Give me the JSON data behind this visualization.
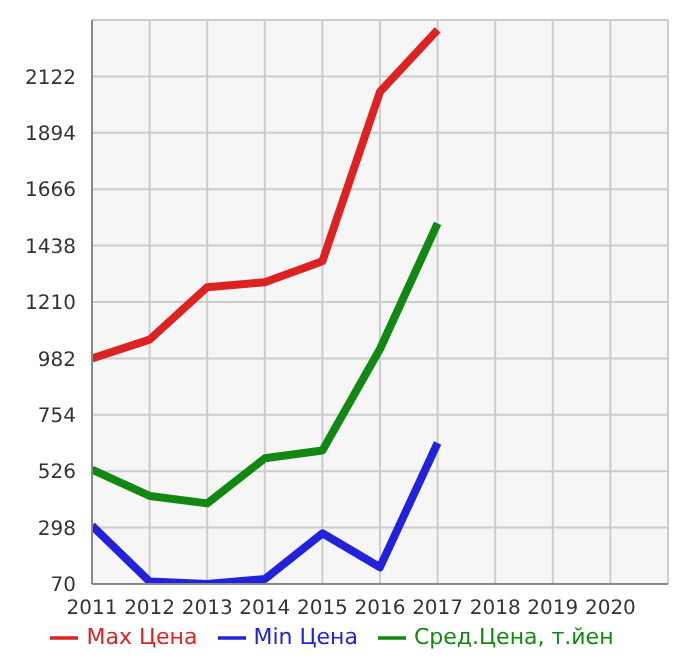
{
  "chart_data": {
    "type": "line",
    "x": [
      2011,
      2012,
      2013,
      2014,
      2015,
      2016,
      2017
    ],
    "xlim": [
      2011,
      2021
    ],
    "xticks": [
      2011,
      2012,
      2013,
      2014,
      2015,
      2016,
      2017,
      2018,
      2019,
      2020
    ],
    "ylim": [
      70,
      2350
    ],
    "yticks": [
      70,
      298,
      526,
      754,
      982,
      1210,
      1438,
      1666,
      1894,
      2122
    ],
    "grid": true,
    "legend": "bottom",
    "marker": "none",
    "series": [
      {
        "name": "Max Цена",
        "color": "#dd2222",
        "values": [
          982,
          1058,
          1270,
          1290,
          1375,
          2060,
          2310
        ]
      },
      {
        "name": "Min Цена",
        "color": "#2222dd",
        "values": [
          306,
          80,
          70,
          90,
          275,
          138,
          640
        ]
      },
      {
        "name": "Сред.Цена, т.йен",
        "color": "#118811",
        "values": [
          532,
          426,
          396,
          578,
          610,
          1020,
          1528
        ]
      }
    ]
  }
}
